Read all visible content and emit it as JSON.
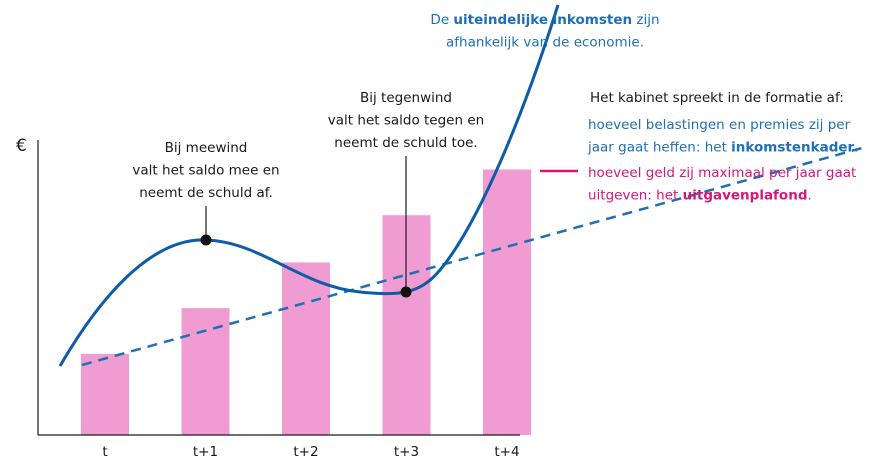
{
  "chart_data": {
    "type": "bar",
    "y_label": "€",
    "categories": [
      "t",
      "t+1",
      "t+2",
      "t+3",
      "t+4"
    ],
    "values": [
      27.5,
      43,
      58.5,
      74.5,
      90
    ],
    "color": "#f19bd3",
    "ylim": [
      0,
      100
    ],
    "annotations": [
      {
        "lines": [
          [
            {
              "text": "Bij meewind"
            }
          ],
          [
            {
              "text": "valt het saldo mee en"
            }
          ],
          [
            {
              "text": "neemt de schuld af."
            }
          ]
        ]
      },
      {
        "lines": [
          [
            {
              "text": "Bij tegenwind"
            }
          ],
          [
            {
              "text": "valt het saldo tegen en"
            }
          ],
          [
            {
              "text": "neemt de schuld toe."
            }
          ]
        ]
      },
      {
        "color": "#1f6fb5",
        "lines": [
          [
            {
              "text": "De "
            },
            {
              "text": "uiteindelijke inkomsten",
              "bold": true
            },
            {
              "text": " zijn"
            }
          ],
          [
            {
              "text": "afhankelijk van de economie."
            }
          ]
        ]
      },
      {
        "lines": [
          [
            {
              "text": "Het kabinet spreekt in de formatie af:"
            }
          ]
        ]
      },
      {
        "color": "#1f6fb5",
        "lines": [
          [
            {
              "text": "hoeveel belastingen en premies zij per"
            }
          ],
          [
            {
              "text": "jaar gaat heffen: het "
            },
            {
              "text": "inkomstenkader",
              "bold": true
            },
            {
              "text": "."
            }
          ]
        ]
      },
      {
        "color": "#d6177a",
        "lines": [
          [
            {
              "text": "hoeveel geld zij maximaal per jaar gaat"
            }
          ],
          [
            {
              "text": "uitgeven: het "
            },
            {
              "text": "uitgavenplafond",
              "bold": true
            },
            {
              "text": "."
            }
          ]
        ]
      }
    ]
  }
}
